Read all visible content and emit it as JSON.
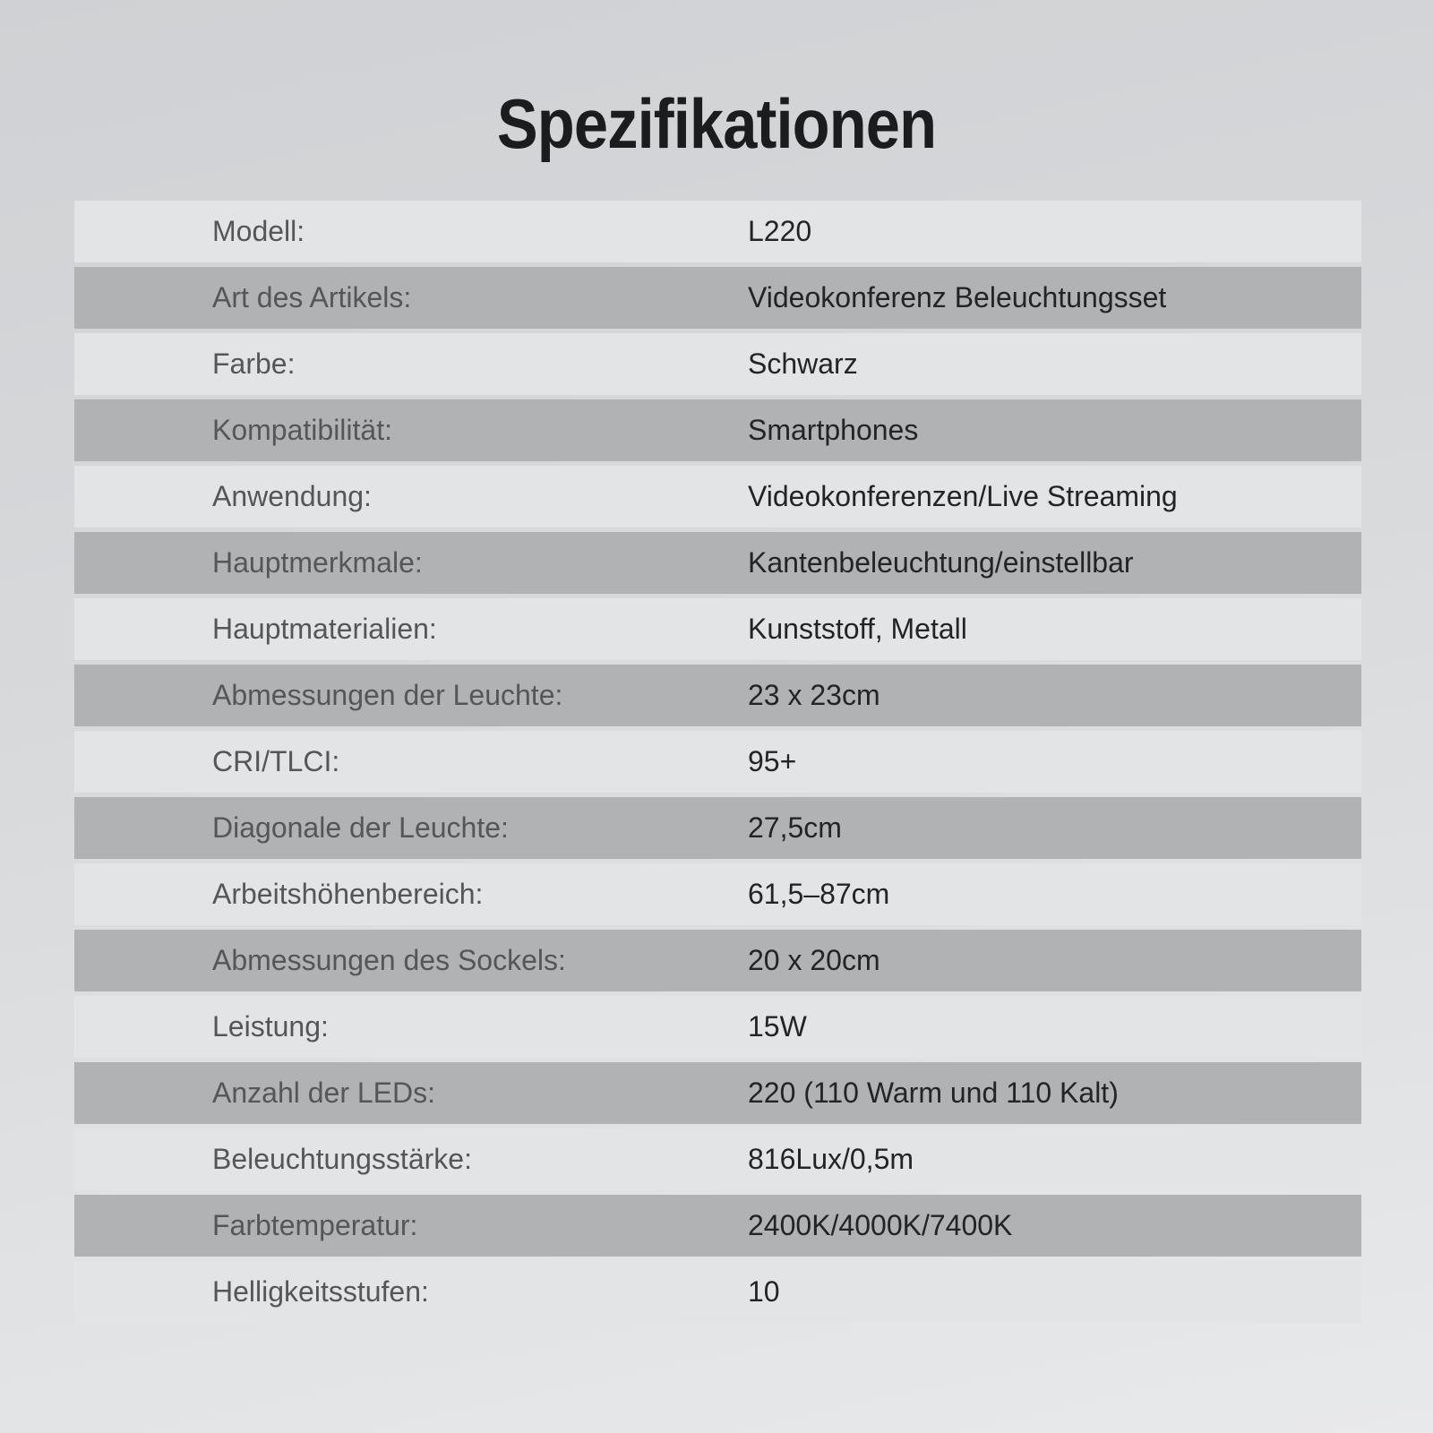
{
  "page": {
    "title": "Spezifikationen"
  },
  "colors": {
    "row_light": "#e3e4e6",
    "row_dark": "#b1b2b4",
    "label_text": "#55565a",
    "value_text": "#232427",
    "title_text": "#1b1c1e",
    "background_top": "#cfd1d4",
    "background_mid": "#d7d9db",
    "background_bottom": "#e8e9eb"
  },
  "table": {
    "rows": [
      {
        "label": "Modell:",
        "value": "L220"
      },
      {
        "label": "Art des Artikels:",
        "value": "Videokonferenz Beleuchtungsset"
      },
      {
        "label": "Farbe:",
        "value": "Schwarz"
      },
      {
        "label": "Kompatibilität:",
        "value": "Smartphones"
      },
      {
        "label": "Anwendung:",
        "value": "Videokonferenzen/Live Streaming"
      },
      {
        "label": "Hauptmerkmale:",
        "value": "Kantenbeleuchtung/einstellbar"
      },
      {
        "label": "Hauptmaterialien:",
        "value": "Kunststoff, Metall"
      },
      {
        "label": "Abmessungen der Leuchte:",
        "value": "23 x 23cm"
      },
      {
        "label": "CRI/TLCI:",
        "value": "95+"
      },
      {
        "label": "Diagonale der Leuchte:",
        "value": "27,5cm"
      },
      {
        "label": "Arbeitshöhenbereich:",
        "value": "61,5–87cm"
      },
      {
        "label": "Abmessungen des Sockels:",
        "value": "20 x 20cm"
      },
      {
        "label": "Leistung:",
        "value": "15W"
      },
      {
        "label": "Anzahl der LEDs:",
        "value": "220 (110 Warm und 110 Kalt)"
      },
      {
        "label": "Beleuchtungsstärke:",
        "value": "816Lux/0,5m"
      },
      {
        "label": "Farbtemperatur:",
        "value": "2400K/4000K/7400K"
      },
      {
        "label": "Helligkeitsstufen:",
        "value": "10"
      }
    ]
  }
}
